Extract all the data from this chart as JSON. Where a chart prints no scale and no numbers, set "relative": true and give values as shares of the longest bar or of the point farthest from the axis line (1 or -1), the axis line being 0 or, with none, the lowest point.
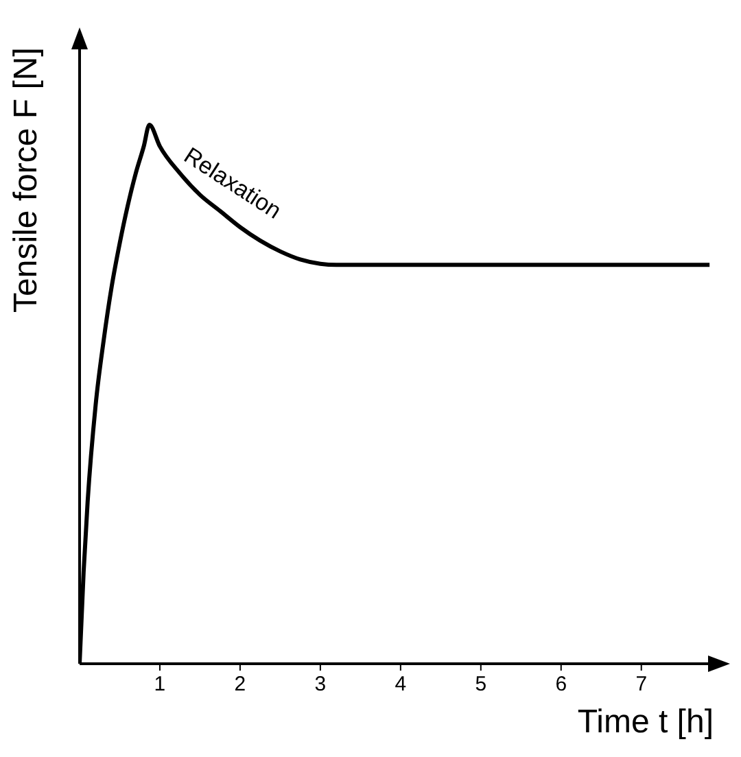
{
  "chart_data": {
    "type": "line",
    "relative": true,
    "xlabel": "Time t [h]",
    "ylabel": "Tensile force F [N]",
    "x": [
      0,
      0.05,
      0.1,
      0.2,
      0.3,
      0.4,
      0.5,
      0.6,
      0.7,
      0.8,
      0.87,
      1.0,
      1.25,
      1.5,
      1.75,
      2.0,
      2.25,
      2.5,
      2.75,
      3.0,
      3.2,
      3.35,
      5,
      7.85
    ],
    "series": [
      {
        "color": "#000000",
        "values": [
          0,
          0.17,
          0.3,
          0.48,
          0.6,
          0.7,
          0.78,
          0.85,
          0.91,
          0.96,
          1,
          0.96,
          0.91,
          0.87,
          0.84,
          0.81,
          0.785,
          0.765,
          0.75,
          0.742,
          0.74,
          0.74,
          0.74,
          0.74
        ]
      }
    ],
    "xlim": [
      0,
      7.9
    ],
    "xticks": [
      1,
      2,
      3,
      4,
      5,
      6,
      7
    ],
    "annotations": [
      "Relaxation"
    ],
    "grid": false,
    "marker": "none",
    "line_style": "solid"
  }
}
